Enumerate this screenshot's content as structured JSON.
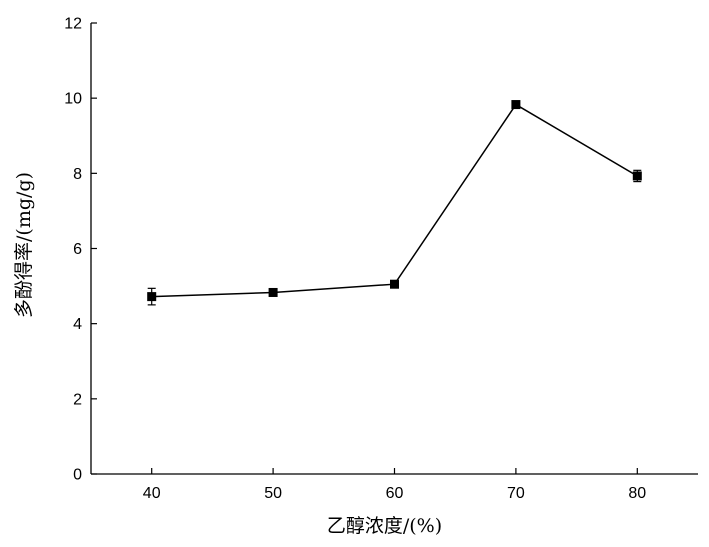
{
  "chart_data": {
    "type": "line",
    "title": "",
    "xlabel": "乙醇浓度/(%)",
    "ylabel": "多酚得率/(mg/g)",
    "x": [
      40,
      50,
      60,
      70,
      80
    ],
    "x_tick_labels": [
      "40",
      "50",
      "60",
      "70",
      "80"
    ],
    "y_tick_labels": [
      "0",
      "2",
      "4",
      "6",
      "8",
      "10",
      "12"
    ],
    "ylim": [
      0,
      12
    ],
    "series": [
      {
        "values": [
          4.72,
          4.83,
          5.05,
          9.83,
          7.93
        ],
        "errors": [
          0.22,
          0.06,
          0.06,
          0.07,
          0.15
        ],
        "marker": "square",
        "color": "#000000"
      }
    ],
    "grid": false,
    "legend": "none"
  }
}
